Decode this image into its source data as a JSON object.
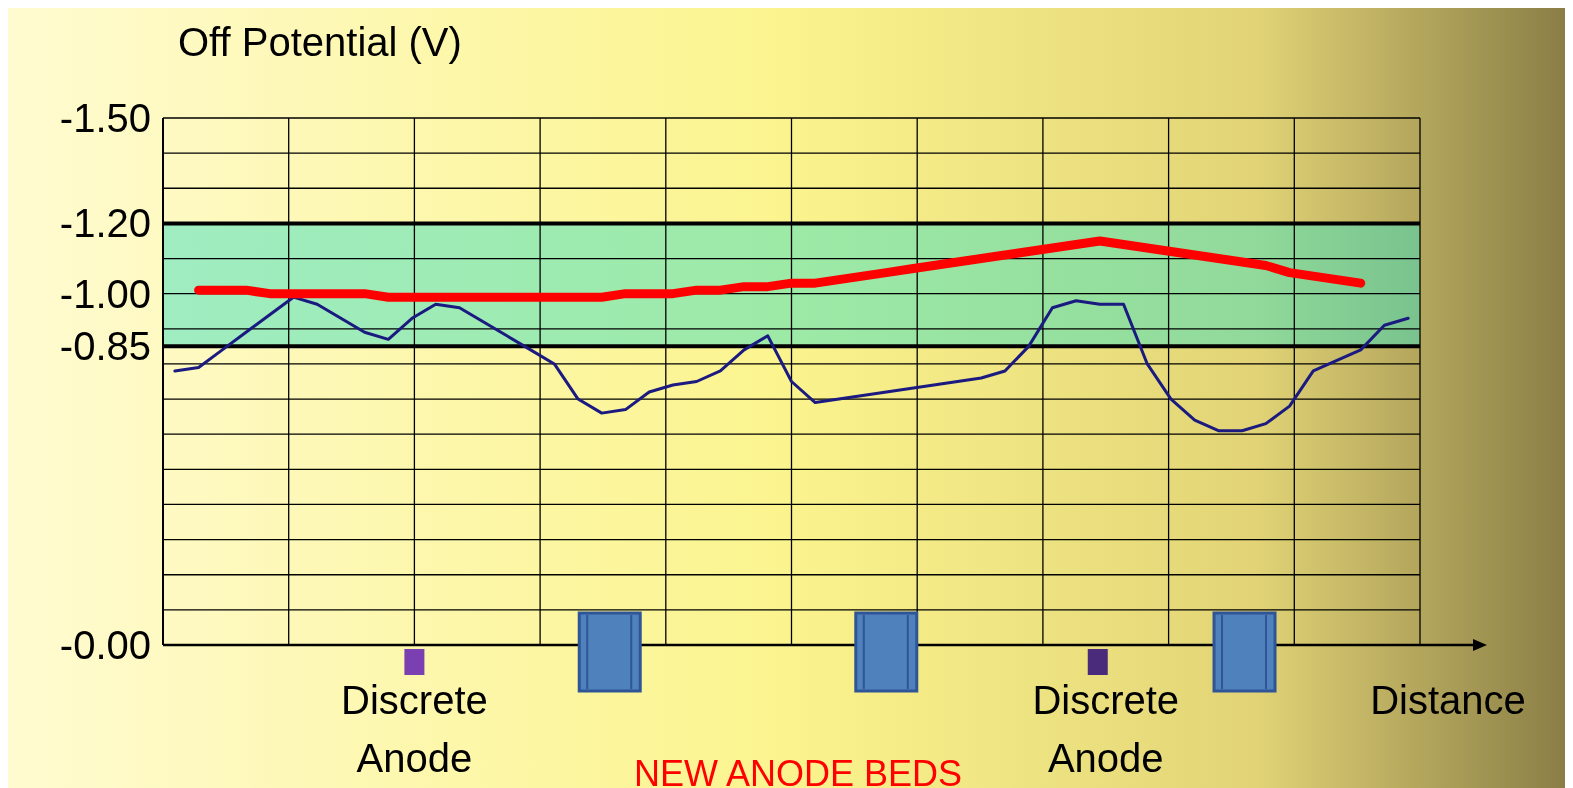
{
  "chart_data": {
    "type": "line",
    "title": "Off Potential (V)",
    "xlabel": "Distance",
    "categories": [
      null,
      null,
      null,
      null,
      null,
      null,
      null,
      null,
      null,
      null,
      null,
      null,
      null,
      null,
      null,
      null,
      null,
      null,
      null,
      null,
      null,
      null,
      null,
      null,
      null,
      null,
      null,
      null,
      null,
      null,
      null,
      null,
      null,
      null,
      null,
      null,
      null,
      null,
      null,
      null,
      null,
      null,
      null,
      null,
      null,
      null,
      null,
      null,
      null,
      null,
      null,
      null,
      null
    ],
    "ylim": [
      0,
      -1.5
    ],
    "yticks": [
      {
        "value": 0,
        "label": "-0.00"
      },
      {
        "value": -0.1,
        "label": null
      },
      {
        "value": -0.2,
        "label": null
      },
      {
        "value": -0.3,
        "label": null
      },
      {
        "value": -0.4,
        "label": null
      },
      {
        "value": -0.5,
        "label": null
      },
      {
        "value": -0.6,
        "label": null
      },
      {
        "value": -0.7,
        "label": null
      },
      {
        "value": -0.8,
        "label": null
      },
      {
        "value": -0.85,
        "label": "-0.85"
      },
      {
        "value": -0.9,
        "label": null
      },
      {
        "value": -1.0,
        "label": "-1.00"
      },
      {
        "value": -1.1,
        "label": null
      },
      {
        "value": -1.2,
        "label": "-1.20"
      },
      {
        "value": -1.3,
        "label": null
      },
      {
        "value": -1.4,
        "label": null
      },
      {
        "value": -1.5,
        "label": "-1.50"
      }
    ],
    "tick_labels": "y",
    "grid": true,
    "marker": "none",
    "line_style": "solid",
    "bands": [
      {
        "axis": "y",
        "from": -0.85,
        "to": -1.2,
        "color": "#40e0c0"
      }
    ],
    "series": [
      {
        "color": "#1a1a80",
        "values": [
          -0.78,
          -0.79,
          -0.84,
          -0.89,
          -0.94,
          -0.99,
          -0.97,
          -0.93,
          -0.89,
          -0.87,
          -0.93,
          -0.97,
          -0.96,
          -0.92,
          -0.88,
          -0.84,
          -0.8,
          -0.7,
          -0.66,
          -0.67,
          -0.72,
          -0.74,
          -0.75,
          -0.78,
          -0.84,
          -0.88,
          -0.75,
          -0.69,
          -0.7,
          -0.71,
          -0.72,
          -0.73,
          -0.74,
          -0.75,
          -0.76,
          -0.78,
          -0.85,
          -0.96,
          -0.98,
          -0.97,
          -0.97,
          -0.8,
          -0.7,
          -0.64,
          -0.61,
          -0.61,
          -0.63,
          -0.68,
          -0.78,
          -0.81,
          -0.84,
          -0.91,
          -0.93
        ]
      },
      {
        "color": "#ff0000",
        "values": [
          null,
          -1.01,
          -1.01,
          -1.01,
          -1.0,
          -1.0,
          -1.0,
          -1.0,
          -1.0,
          -0.99,
          -0.99,
          -0.99,
          -0.99,
          -0.99,
          -0.99,
          -0.99,
          -0.99,
          -0.99,
          -0.99,
          -1.0,
          -1.0,
          -1.0,
          -1.01,
          -1.01,
          -1.02,
          -1.02,
          -1.03,
          -1.03,
          -1.04,
          -1.05,
          -1.06,
          -1.07,
          -1.08,
          -1.09,
          -1.1,
          -1.11,
          -1.12,
          -1.13,
          -1.14,
          -1.15,
          -1.14,
          -1.13,
          -1.12,
          -1.11,
          -1.1,
          -1.09,
          -1.08,
          -1.06,
          -1.05,
          -1.04,
          -1.03,
          null,
          null
        ]
      }
    ],
    "annotations": [
      "Discrete Anode",
      "Discrete Anode",
      "NEW ANODE BEDS"
    ]
  }
}
